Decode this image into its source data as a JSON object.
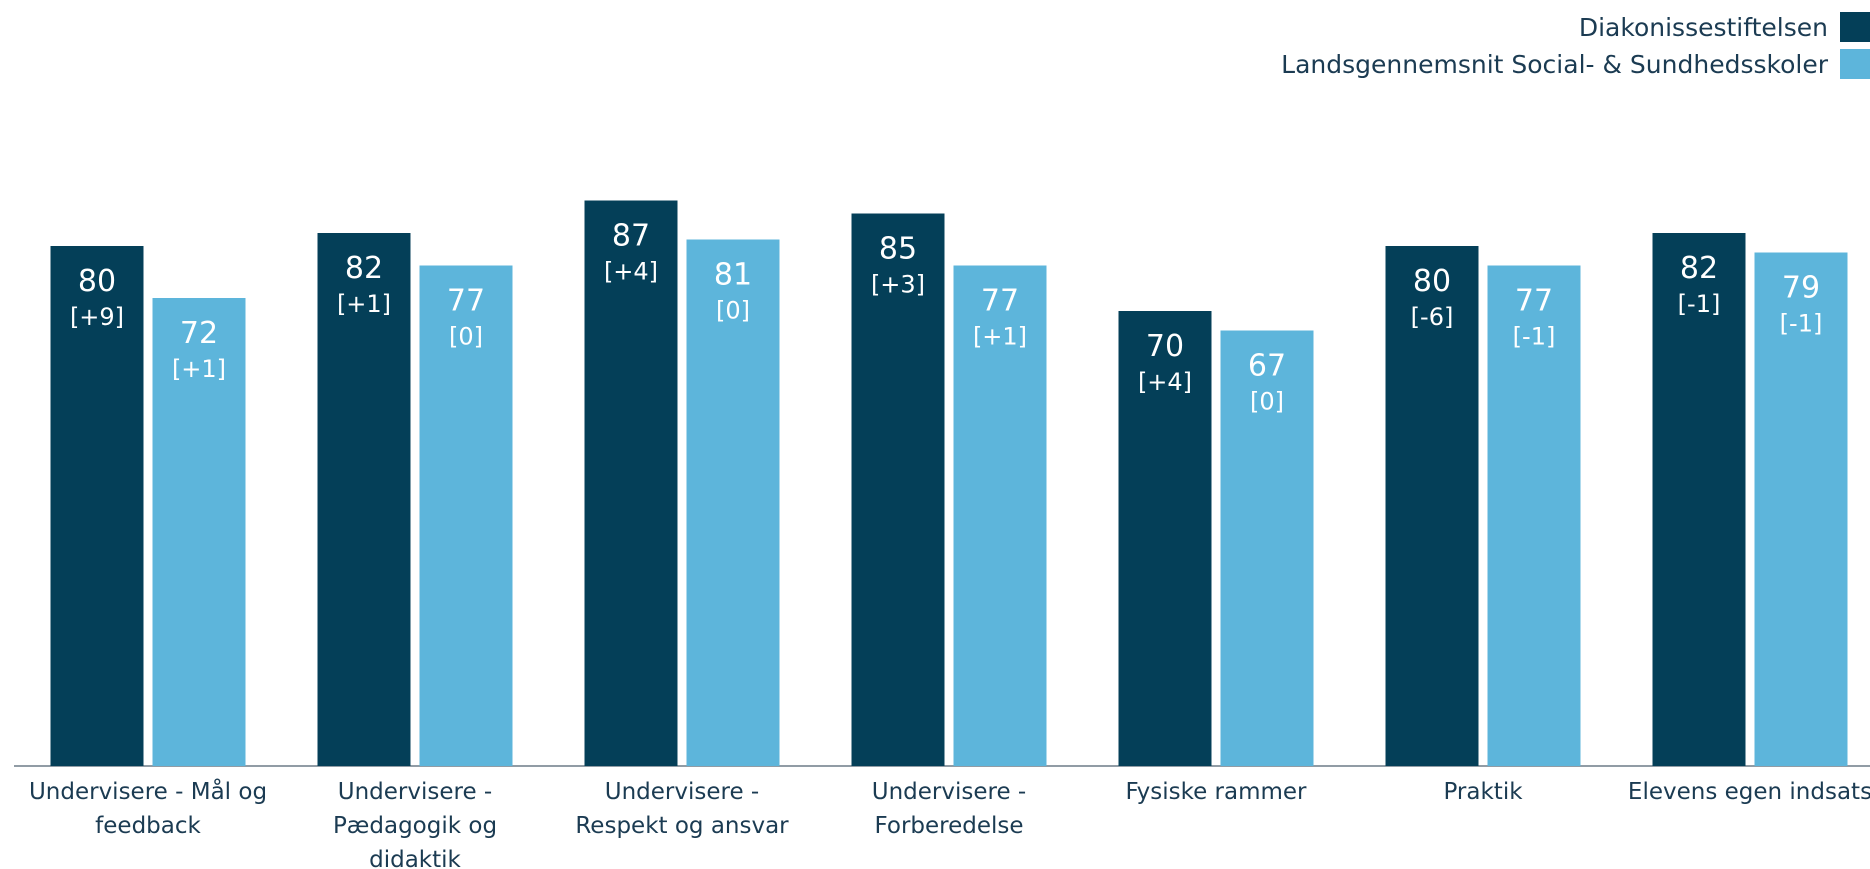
{
  "legend": [
    {
      "label": "Diakonissestiftelsen",
      "color": "#043f58"
    },
    {
      "label": "Landsgennemsnit Social- & Sundhedsskoler",
      "color": "#5db5db"
    }
  ],
  "chart_data": {
    "type": "bar",
    "title": "",
    "xlabel": "",
    "ylabel": "",
    "ylim": [
      0,
      100
    ],
    "grid": false,
    "legend_position": "top-right",
    "categories": [
      [
        "Undervisere - Mål og",
        "feedback"
      ],
      [
        "Undervisere -",
        "Pædagogik og",
        "didaktik"
      ],
      [
        "Undervisere -",
        "Respekt og ansvar"
      ],
      [
        "Undervisere -",
        "Forberedelse"
      ],
      [
        "Fysiske rammer"
      ],
      [
        "Praktik"
      ],
      [
        "Elevens egen indsats"
      ]
    ],
    "series": [
      {
        "name": "Diakonissestiftelsen",
        "color": "#043f58",
        "label_color": "#ffffff",
        "values": [
          80,
          82,
          87,
          85,
          70,
          80,
          82
        ],
        "changes": [
          "[+9]",
          "[+1]",
          "[+4]",
          "[+3]",
          "[+4]",
          "[-6]",
          "[-1]"
        ]
      },
      {
        "name": "Landsgennemsnit Social- & Sundhedsskoler",
        "color": "#5db5db",
        "label_color": "#ffffff",
        "values": [
          72,
          77,
          81,
          77,
          67,
          77,
          79
        ],
        "changes": [
          "[+1]",
          "[0]",
          "[0]",
          "[+1]",
          "[0]",
          "[-1]",
          "[-1]"
        ]
      }
    ]
  }
}
